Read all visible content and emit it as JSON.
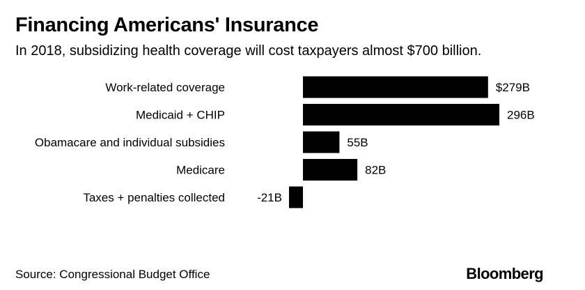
{
  "header": {
    "title": "Financing Americans' Insurance",
    "subtitle": "In 2018, subsidizing health coverage will cost taxpayers almost $700 billion."
  },
  "footer": {
    "source": "Source: Congressional Budget Office",
    "brand": "Bloomberg"
  },
  "colors": {
    "bar": "#000000",
    "text": "#000000",
    "background": "#ffffff"
  },
  "chart_data": {
    "type": "bar",
    "orientation": "horizontal",
    "title": "Financing Americans' Insurance",
    "subtitle": "In 2018, subsidizing health coverage will cost taxpayers almost $700 billion.",
    "unit": "billions of dollars",
    "categories": [
      "Work-related coverage",
      "Medicaid + CHIP",
      "Obamacare and individual subsidies",
      "Medicare",
      "Taxes + penalties collected"
    ],
    "values": [
      279,
      296,
      55,
      82,
      -21
    ],
    "labels": [
      "$279B",
      "296B",
      "55B",
      "82B",
      "-21B"
    ],
    "xlim": [
      -21,
      296
    ],
    "xlabel": "",
    "ylabel": "",
    "grid": false,
    "legend": "none"
  }
}
